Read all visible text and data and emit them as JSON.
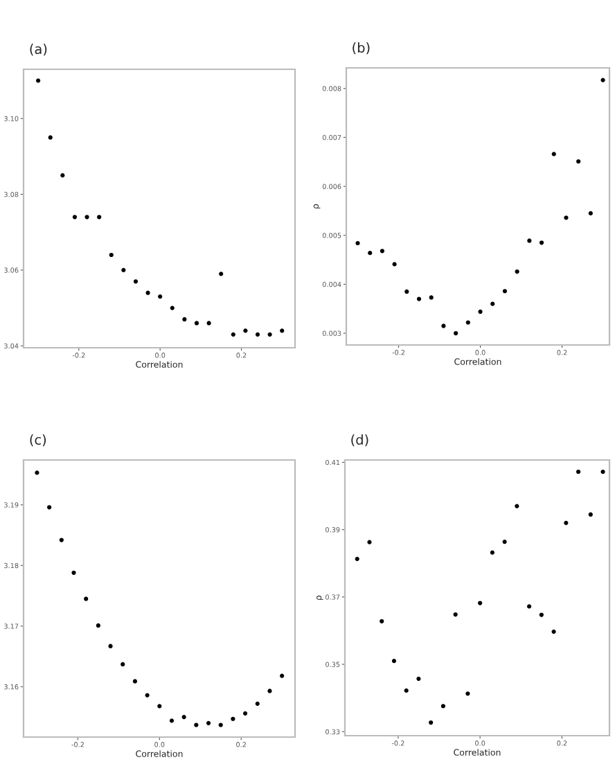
{
  "chart_data": [
    {
      "type": "scatter",
      "title": "(a)",
      "xlabel": "Correlation",
      "color": "#000000",
      "marker": "circle",
      "grid": false,
      "x": [
        -0.3,
        -0.27,
        -0.24,
        -0.21,
        -0.18,
        -0.15,
        -0.12,
        -0.09,
        -0.06,
        -0.03,
        0.0,
        0.03,
        0.06,
        0.09,
        0.12,
        0.15,
        0.18,
        0.21,
        0.24,
        0.27,
        0.3
      ],
      "values": [
        3.11,
        3.095,
        3.085,
        3.074,
        3.074,
        3.074,
        3.064,
        3.06,
        3.057,
        3.054,
        3.053,
        3.05,
        3.047,
        3.046,
        3.046,
        3.059,
        3.043,
        3.044,
        3.043,
        3.043,
        3.044
      ],
      "xlim": [
        -0.336,
        0.332
      ],
      "ylim": [
        3.0395,
        3.113
      ],
      "xticks": [
        {
          "value": -0.2,
          "label": "-0.2"
        },
        {
          "value": 0,
          "label": "0.0"
        },
        {
          "value": 0.2,
          "label": "0.2"
        }
      ],
      "yticks": [
        {
          "value": 3.04,
          "label": "3.04"
        },
        {
          "value": 3.06,
          "label": "3.06"
        },
        {
          "value": 3.08,
          "label": "3.08"
        },
        {
          "value": 3.1,
          "label": "3.10"
        }
      ]
    },
    {
      "type": "scatter",
      "title": "(b)",
      "xlabel": "Correlation",
      "ylabel": "ρ",
      "color": "#000000",
      "marker": "circle",
      "grid": false,
      "x": [
        -0.3,
        -0.27,
        -0.24,
        -0.21,
        -0.18,
        -0.15,
        -0.12,
        -0.09,
        -0.06,
        -0.03,
        0.0,
        0.03,
        0.06,
        0.09,
        0.12,
        0.15,
        0.18,
        0.21,
        0.24,
        0.27,
        0.3
      ],
      "values": [
        0.00484,
        0.00464,
        0.00468,
        0.00441,
        0.00385,
        0.0037,
        0.00373,
        0.00315,
        0.003,
        0.00322,
        0.00344,
        0.0036,
        0.00386,
        0.00426,
        0.00489,
        0.00485,
        0.00666,
        0.00536,
        0.00651,
        0.00545,
        0.00817
      ],
      "xlim": [
        -0.328,
        0.316
      ],
      "ylim": [
        0.00276,
        0.00842
      ],
      "xticks": [
        {
          "value": -0.2,
          "label": "-0.2"
        },
        {
          "value": 0,
          "label": "0.0"
        },
        {
          "value": 0.2,
          "label": "0.2"
        }
      ],
      "yticks": [
        {
          "value": 0.003,
          "label": "0.003"
        },
        {
          "value": 0.004,
          "label": "0.004"
        },
        {
          "value": 0.005,
          "label": "0.005"
        },
        {
          "value": 0.006,
          "label": "0.006"
        },
        {
          "value": 0.007,
          "label": "0.007"
        },
        {
          "value": 0.008,
          "label": "0.008"
        }
      ]
    },
    {
      "type": "scatter",
      "title": "(c)",
      "xlabel": "Correlation",
      "color": "#000000",
      "marker": "circle",
      "grid": false,
      "x": [
        -0.3,
        -0.27,
        -0.24,
        -0.21,
        -0.18,
        -0.15,
        -0.12,
        -0.09,
        -0.06,
        -0.03,
        0.0,
        0.03,
        0.06,
        0.09,
        0.12,
        0.15,
        0.18,
        0.21,
        0.24,
        0.27,
        0.3
      ],
      "values": [
        3.1953,
        3.1896,
        3.1842,
        3.1788,
        3.1745,
        3.1701,
        3.1667,
        3.1637,
        3.1609,
        3.1586,
        3.1568,
        3.1544,
        3.155,
        3.1537,
        3.154,
        3.1537,
        3.1547,
        3.1556,
        3.1572,
        3.1593,
        3.1618
      ],
      "xlim": [
        -0.333,
        0.332
      ],
      "ylim": [
        3.1517,
        3.1974
      ],
      "xticks": [
        {
          "value": -0.2,
          "label": "-0.2"
        },
        {
          "value": 0,
          "label": "0.0"
        },
        {
          "value": 0.2,
          "label": "0.2"
        }
      ],
      "yticks": [
        {
          "value": 3.16,
          "label": "3.16"
        },
        {
          "value": 3.17,
          "label": "3.17"
        },
        {
          "value": 3.18,
          "label": "3.18"
        },
        {
          "value": 3.19,
          "label": "3.19"
        }
      ]
    },
    {
      "type": "scatter",
      "title": "(d)",
      "xlabel": "Correlation",
      "ylabel": "ρ",
      "color": "#000000",
      "marker": "circle",
      "grid": false,
      "x": [
        -0.3,
        -0.27,
        -0.24,
        -0.21,
        -0.18,
        -0.15,
        -0.12,
        -0.09,
        -0.06,
        -0.03,
        0.0,
        0.03,
        0.06,
        0.09,
        0.12,
        0.15,
        0.18,
        0.21,
        0.24,
        0.27,
        0.3
      ],
      "values": [
        0.3813,
        0.3863,
        0.3628,
        0.351,
        0.3422,
        0.3457,
        0.3327,
        0.3376,
        0.3648,
        0.3413,
        0.3682,
        0.3832,
        0.3864,
        0.397,
        0.3672,
        0.3647,
        0.3597,
        0.392,
        0.4072,
        0.3945,
        0.4072
      ],
      "xlim": [
        -0.33,
        0.316
      ],
      "ylim": [
        0.3288,
        0.4107
      ],
      "xticks": [
        {
          "value": -0.2,
          "label": "-0.2"
        },
        {
          "value": 0,
          "label": "0.0"
        },
        {
          "value": 0.2,
          "label": "0.2"
        }
      ],
      "yticks": [
        {
          "value": 0.33,
          "label": "0.33"
        },
        {
          "value": 0.35,
          "label": "0.35"
        },
        {
          "value": 0.37,
          "label": "0.37"
        },
        {
          "value": 0.39,
          "label": "0.39"
        },
        {
          "value": 0.41,
          "label": "0.41"
        }
      ]
    }
  ]
}
